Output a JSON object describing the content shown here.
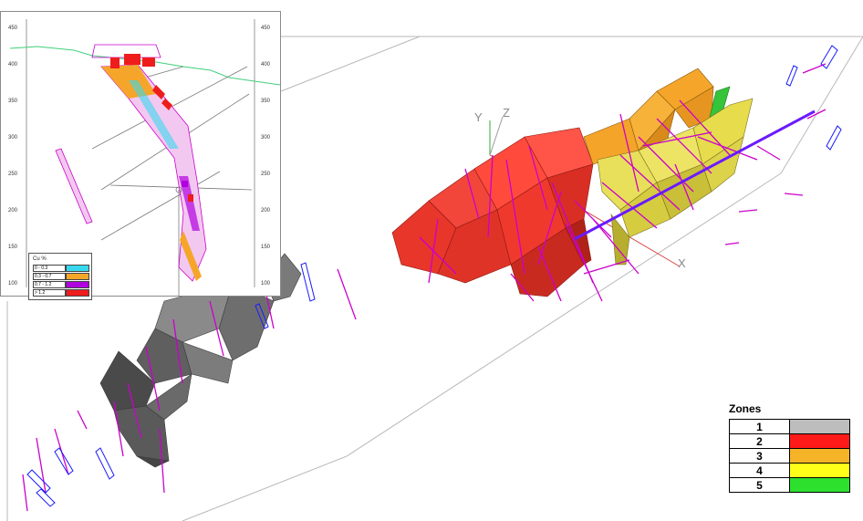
{
  "scene": {
    "axis_labels": {
      "y": "Y",
      "z": "Z",
      "x": "X"
    },
    "shape_colors": {
      "zone1": "#6e6e6e",
      "zone2": "#ff3a2f",
      "zone3": "#f5a62a",
      "zone4": "#e6dc4c",
      "zone5": "#35c43a",
      "drillhole": "#cc00cc",
      "drillhole_blue": "#1a1aff"
    }
  },
  "inset": {
    "y_ticks_left": [
      "450",
      "400",
      "350",
      "300",
      "250",
      "200",
      "150",
      "100"
    ],
    "y_ticks_right": [
      "450",
      "400",
      "350",
      "300",
      "250",
      "200",
      "150",
      "100"
    ],
    "legend": {
      "title": "Cu %",
      "rows": [
        {
          "label": "0 - 0.3",
          "color": "#38d8ef"
        },
        {
          "label": "0.3 - 0.7",
          "color": "#f5a62a"
        },
        {
          "label": "0.7 - 1.2",
          "color": "#b000e0"
        },
        {
          "label": "> 1.2",
          "color": "#ee1c1c"
        }
      ]
    }
  },
  "zones_legend": {
    "title": "Zones",
    "rows": [
      {
        "label": "1",
        "color": "#bdbdbd"
      },
      {
        "label": "2",
        "color": "#ff1a1a"
      },
      {
        "label": "3",
        "color": "#f5b428"
      },
      {
        "label": "4",
        "color": "#ffff1a"
      },
      {
        "label": "5",
        "color": "#2ee02e"
      }
    ]
  }
}
